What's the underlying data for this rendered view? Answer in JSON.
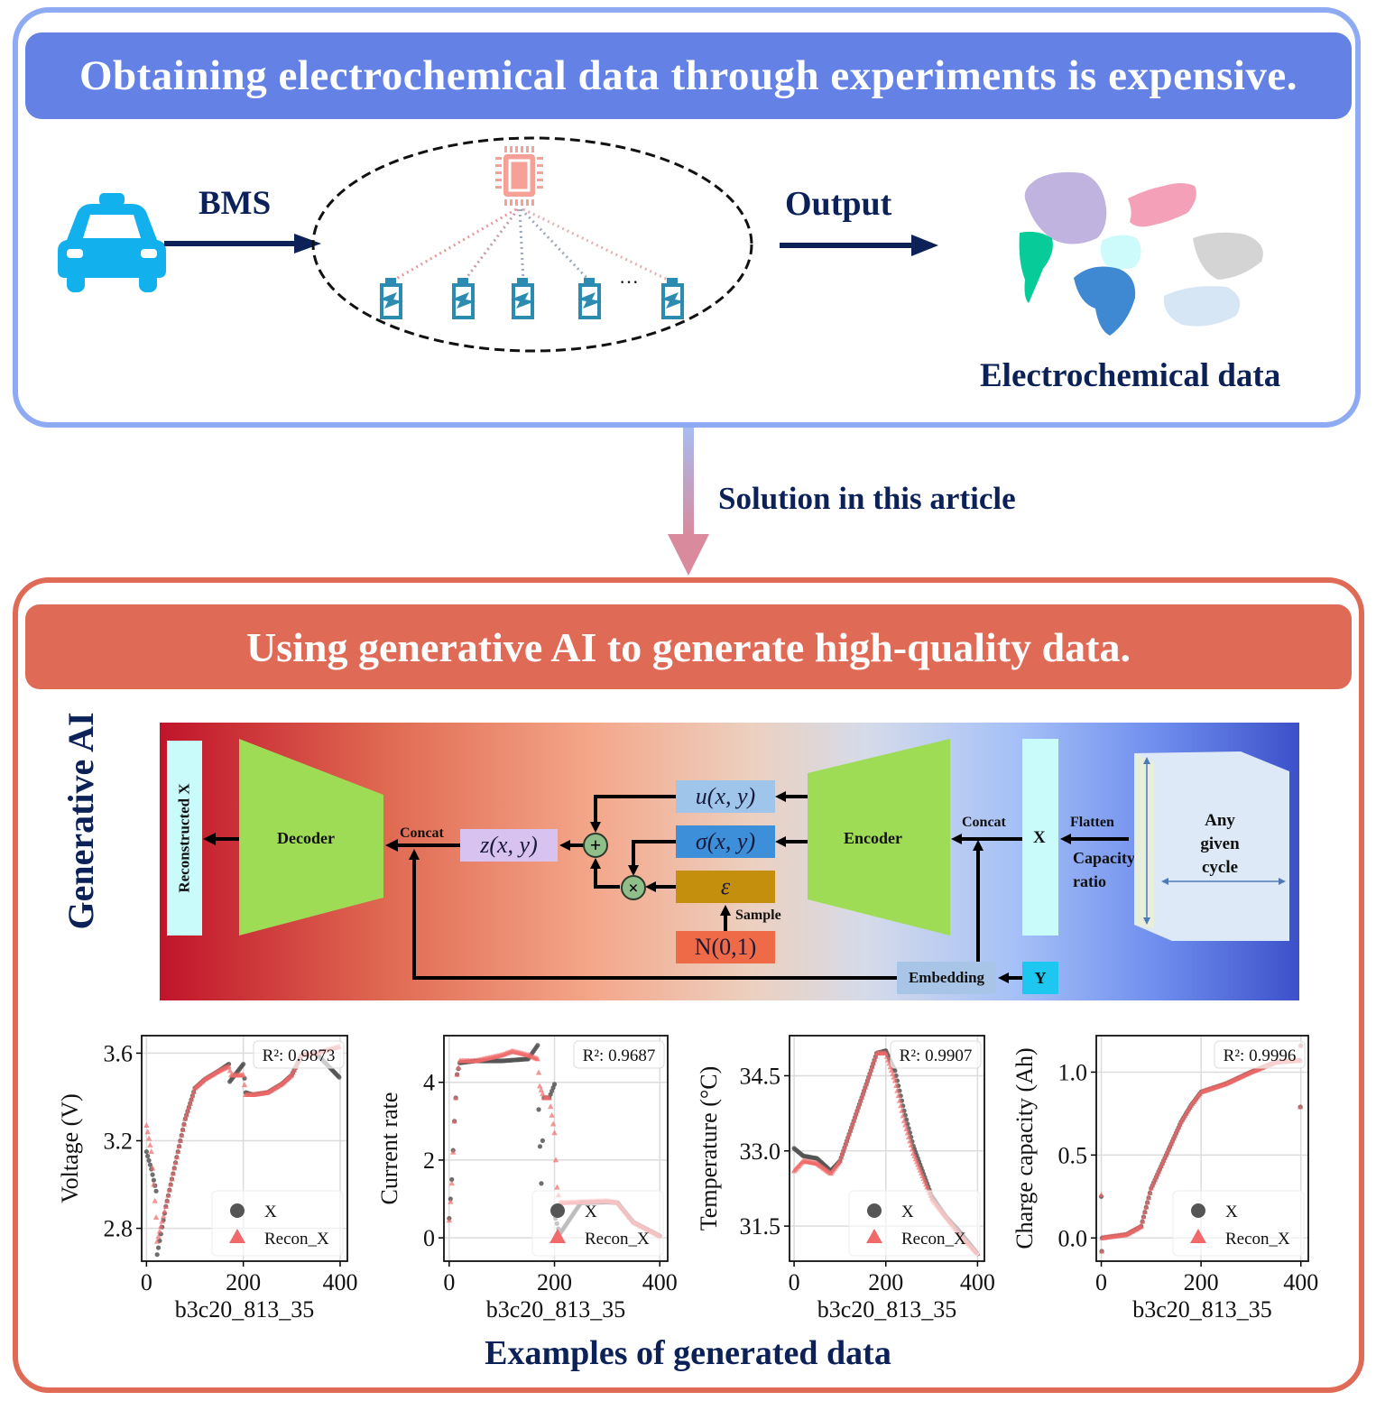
{
  "top_section": {
    "banner_title": "Obtaining electrochemical  data through experiments is expensive.",
    "bms_label": "BMS",
    "output_label": "Output",
    "ellipsis": "···",
    "data_label": "Electrochemical data",
    "icons": [
      "car-icon",
      "chip-icon",
      "battery-icon",
      "world-map-icon"
    ]
  },
  "connector": {
    "label": "Solution in this article"
  },
  "bottom_section": {
    "banner_title": "Using generative AI to generate high-quality data.",
    "side_label": "Generative AI",
    "footer_label": "Examples of generated data"
  },
  "vae_diagram": {
    "reconstructed": "Reconstructed X",
    "decoder": "Decoder",
    "encoder": "Encoder",
    "concat_left": "Concat",
    "concat_right": "Concat",
    "z": "z(x, y)",
    "mu": "u(x, y)",
    "sigma": "σ(x, y)",
    "epsilon": "ε",
    "normal": "N(0,1)",
    "sample": "Sample",
    "plus": "+",
    "times": "×",
    "x_label": "X",
    "y_label": "Y",
    "flatten": "Flatten",
    "capacity_ratio_1": "Capacity",
    "capacity_ratio_2": "ratio",
    "embedding": "Embedding",
    "cube_line1": "Any",
    "cube_line2": "given",
    "cube_line3": "cycle",
    "colors": {
      "decoder_encoder": "#9edc55",
      "x_box": "#c9fbfb",
      "mu_box": "#9fc5ea",
      "sigma_box": "#3d8fd9",
      "epsilon_box": "#c48f0c",
      "normal_box": "#ef6a46",
      "z_box": "#d8c3f0",
      "embedding_box": "#a8c5e8",
      "y_box": "#1ec7ef"
    }
  },
  "chart_data": [
    {
      "type": "scatter",
      "title": "",
      "xlabel": "b3c20_813_35",
      "ylabel": "Voltage (V)",
      "xticks": [
        "0",
        "200",
        "400"
      ],
      "yticks": [
        "2.8",
        "3.2",
        "3.6"
      ],
      "xlim": [
        -10,
        415
      ],
      "ylim": [
        2.65,
        3.68
      ],
      "annotation": "R²: 0.9873",
      "legend": [
        "X",
        "Recon_X"
      ],
      "series": [
        {
          "name": "X",
          "x": [
            0,
            10,
            20,
            22,
            40,
            60,
            80,
            100,
            120,
            150,
            170,
            172,
            200,
            205,
            220,
            250,
            280,
            300,
            320,
            350,
            398
          ],
          "values": [
            3.15,
            3.07,
            2.97,
            2.68,
            2.9,
            3.1,
            3.3,
            3.44,
            3.48,
            3.52,
            3.55,
            3.47,
            3.55,
            3.42,
            3.41,
            3.42,
            3.46,
            3.5,
            3.59,
            3.6,
            3.49
          ]
        },
        {
          "name": "Recon_X",
          "x": [
            0,
            10,
            20,
            22,
            40,
            60,
            80,
            100,
            120,
            150,
            170,
            175,
            200,
            205,
            220,
            250,
            280,
            300,
            320,
            350,
            398
          ],
          "values": [
            3.27,
            3.15,
            2.85,
            2.74,
            2.9,
            3.1,
            3.3,
            3.44,
            3.48,
            3.52,
            3.54,
            3.5,
            3.5,
            3.41,
            3.41,
            3.42,
            3.46,
            3.5,
            3.59,
            3.6,
            3.63
          ]
        }
      ]
    },
    {
      "type": "scatter",
      "title": "",
      "xlabel": "b3c20_813_35",
      "ylabel": "Current rate",
      "xticks": [
        "0",
        "200",
        "400"
      ],
      "yticks": [
        "0",
        "2",
        "4"
      ],
      "xlim": [
        -10,
        415
      ],
      "ylim": [
        -0.6,
        5.2
      ],
      "annotation": "R²: 0.9687",
      "legend": [
        "X",
        "Recon_X"
      ],
      "series": [
        {
          "name": "X",
          "x": [
            0,
            5,
            10,
            15,
            20,
            50,
            100,
            150,
            168,
            170,
            175,
            180,
            190,
            200,
            202,
            210,
            250,
            300,
            320,
            350,
            400
          ],
          "values": [
            0.5,
            1.5,
            3.0,
            4.2,
            4.5,
            4.55,
            4.55,
            4.6,
            4.95,
            3.3,
            1.4,
            3.6,
            3.6,
            3.95,
            0.5,
            0.1,
            0.9,
            0.92,
            0.9,
            0.4,
            0.05
          ]
        },
        {
          "name": "Recon_X",
          "x": [
            0,
            5,
            10,
            15,
            20,
            50,
            100,
            120,
            150,
            168,
            172,
            180,
            190,
            200,
            205,
            210,
            250,
            300,
            320,
            350,
            400
          ],
          "values": [
            0.45,
            1.4,
            3.0,
            4.2,
            4.55,
            4.55,
            4.7,
            4.8,
            4.7,
            4.6,
            3.9,
            3.6,
            3.6,
            2.7,
            1.3,
            0.9,
            0.92,
            0.95,
            0.9,
            0.4,
            0.05
          ]
        }
      ]
    },
    {
      "type": "scatter",
      "title": "",
      "xlabel": "b3c20_813_35",
      "ylabel": "Temperature (°C)",
      "xticks": [
        "0",
        "200",
        "400"
      ],
      "yticks": [
        "31.5",
        "33.0",
        "34.5"
      ],
      "xlim": [
        -10,
        415
      ],
      "ylim": [
        30.8,
        35.3
      ],
      "annotation": "R²: 0.9907",
      "legend": [
        "X",
        "Recon_X"
      ],
      "series": [
        {
          "name": "X",
          "x": [
            0,
            20,
            50,
            80,
            100,
            130,
            160,
            180,
            200,
            220,
            240,
            260,
            280,
            300,
            330,
            360,
            400
          ],
          "values": [
            33.05,
            32.9,
            32.85,
            32.6,
            32.8,
            33.6,
            34.4,
            34.95,
            35.0,
            34.6,
            33.8,
            33.1,
            32.6,
            32.1,
            31.7,
            31.4,
            30.95
          ]
        },
        {
          "name": "Recon_X",
          "x": [
            0,
            20,
            50,
            80,
            100,
            130,
            160,
            180,
            200,
            220,
            240,
            260,
            280,
            300,
            330,
            360,
            400
          ],
          "values": [
            32.6,
            32.8,
            32.75,
            32.55,
            32.8,
            33.6,
            34.4,
            34.95,
            34.95,
            34.4,
            33.6,
            32.95,
            32.5,
            32.05,
            31.7,
            31.35,
            30.95
          ]
        }
      ]
    },
    {
      "type": "scatter",
      "title": "",
      "xlabel": "b3c20_813_35",
      "ylabel": "Charge capacity (Ah)",
      "xticks": [
        "0",
        "200",
        "400"
      ],
      "yticks": [
        "0.0",
        "0.5",
        "1.0"
      ],
      "xlim": [
        -10,
        415
      ],
      "ylim": [
        -0.14,
        1.22
      ],
      "annotation": "R²: 0.9996",
      "legend": [
        "X",
        "Recon_X"
      ],
      "series": [
        {
          "name": "X",
          "x": [
            0,
            1,
            2,
            50,
            80,
            100,
            130,
            160,
            180,
            200,
            250,
            300,
            350,
            398,
            399,
            400
          ],
          "values": [
            0.25,
            -0.08,
            0.0,
            0.02,
            0.07,
            0.3,
            0.5,
            0.7,
            0.8,
            0.88,
            0.93,
            1.0,
            1.06,
            1.07,
            0.79,
            1.16
          ]
        },
        {
          "name": "Recon_X",
          "x": [
            0,
            1,
            2,
            50,
            80,
            100,
            130,
            160,
            180,
            200,
            250,
            300,
            350,
            398,
            399,
            400
          ],
          "values": [
            0.26,
            -0.08,
            0.0,
            0.02,
            0.07,
            0.3,
            0.5,
            0.7,
            0.8,
            0.88,
            0.93,
            1.0,
            1.06,
            1.07,
            0.79,
            1.16
          ]
        }
      ]
    }
  ]
}
